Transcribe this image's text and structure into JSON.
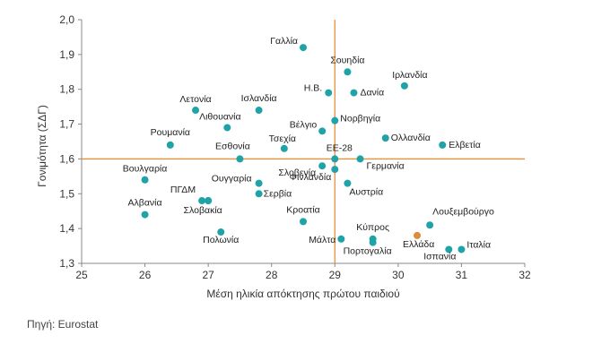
{
  "chart_data": {
    "type": "scatter",
    "xlabel": "Μέση ηλικία απόκτησης πρώτου παιδιού",
    "ylabel": "Γονιμότητα (ΣΔΓ)",
    "xlim": [
      25,
      32
    ],
    "ylim": [
      1.3,
      2.0
    ],
    "xticks": [
      "25",
      "26",
      "27",
      "28",
      "29",
      "30",
      "31",
      "32"
    ],
    "yticks": [
      "1,3",
      "1,4",
      "1,5",
      "1,6",
      "1,7",
      "1,8",
      "1,9",
      "2,0"
    ],
    "reference_lines": {
      "x": 29.0,
      "y": 1.6
    },
    "grid": false,
    "colors": {
      "point": "#1fa3a8",
      "highlight": "#e08a3c",
      "reference": "#e8903a",
      "axis": "#888888"
    },
    "points": [
      {
        "label": "Γαλλία",
        "x": 28.5,
        "y": 1.92
      },
      {
        "label": "Σουηδία",
        "x": 29.2,
        "y": 1.85
      },
      {
        "label": "Ιρλανδία",
        "x": 30.1,
        "y": 1.81
      },
      {
        "label": "Η.Β.",
        "x": 28.9,
        "y": 1.79
      },
      {
        "label": "Δανία",
        "x": 29.3,
        "y": 1.79
      },
      {
        "label": "Λετονία",
        "x": 26.8,
        "y": 1.74
      },
      {
        "label": "Ισλανδία",
        "x": 27.8,
        "y": 1.74
      },
      {
        "label": "Λιθουανία",
        "x": 27.3,
        "y": 1.69
      },
      {
        "label": "Βέλγιο",
        "x": 28.8,
        "y": 1.68
      },
      {
        "label": "Νορβηγία",
        "x": 29.0,
        "y": 1.71
      },
      {
        "label": "Ολλανδία",
        "x": 29.8,
        "y": 1.66
      },
      {
        "label": "Ελβετία",
        "x": 30.7,
        "y": 1.64
      },
      {
        "label": "Ρουμανία",
        "x": 26.4,
        "y": 1.64
      },
      {
        "label": "Τσεχία",
        "x": 28.2,
        "y": 1.63
      },
      {
        "label": "Εσθονία",
        "x": 27.5,
        "y": 1.6
      },
      {
        "label": "ΕΕ-28",
        "x": 29.0,
        "y": 1.6
      },
      {
        "label": "Γερμανία",
        "x": 29.4,
        "y": 1.6
      },
      {
        "label": "Σλοβενία",
        "x": 28.8,
        "y": 1.58
      },
      {
        "label": "Φινλανδία",
        "x": 29.0,
        "y": 1.57
      },
      {
        "label": "Βουλγαρία",
        "x": 26.0,
        "y": 1.54
      },
      {
        "label": "Ουγγαρία",
        "x": 27.8,
        "y": 1.53
      },
      {
        "label": "Αυστρία",
        "x": 29.2,
        "y": 1.53
      },
      {
        "label": "Σερβία",
        "x": 27.8,
        "y": 1.5
      },
      {
        "label": "ΠΓΔΜ",
        "x": 26.9,
        "y": 1.48
      },
      {
        "label": "",
        "x": 27.0,
        "y": 1.48
      },
      {
        "label": "Σλοβακία",
        "x": 27.0,
        "y": 1.48
      },
      {
        "label": "Αλβανία",
        "x": 26.0,
        "y": 1.44
      },
      {
        "label": "Κροατία",
        "x": 28.5,
        "y": 1.42
      },
      {
        "label": "Λουξεμβούργο",
        "x": 30.5,
        "y": 1.41
      },
      {
        "label": "Πολωνία",
        "x": 27.2,
        "y": 1.39
      },
      {
        "label": "Κύπρος",
        "x": 29.6,
        "y": 1.37
      },
      {
        "label": "Πορτογαλία",
        "x": 29.6,
        "y": 1.36
      },
      {
        "label": "Μάλτα",
        "x": 29.1,
        "y": 1.37
      },
      {
        "label": "Ελλάδα",
        "x": 30.3,
        "y": 1.38,
        "highlight": true
      },
      {
        "label": "Ισπανία",
        "x": 30.8,
        "y": 1.34
      },
      {
        "label": "Ιταλία",
        "x": 31.0,
        "y": 1.34
      }
    ]
  },
  "source": "Πηγή: Eurostat"
}
